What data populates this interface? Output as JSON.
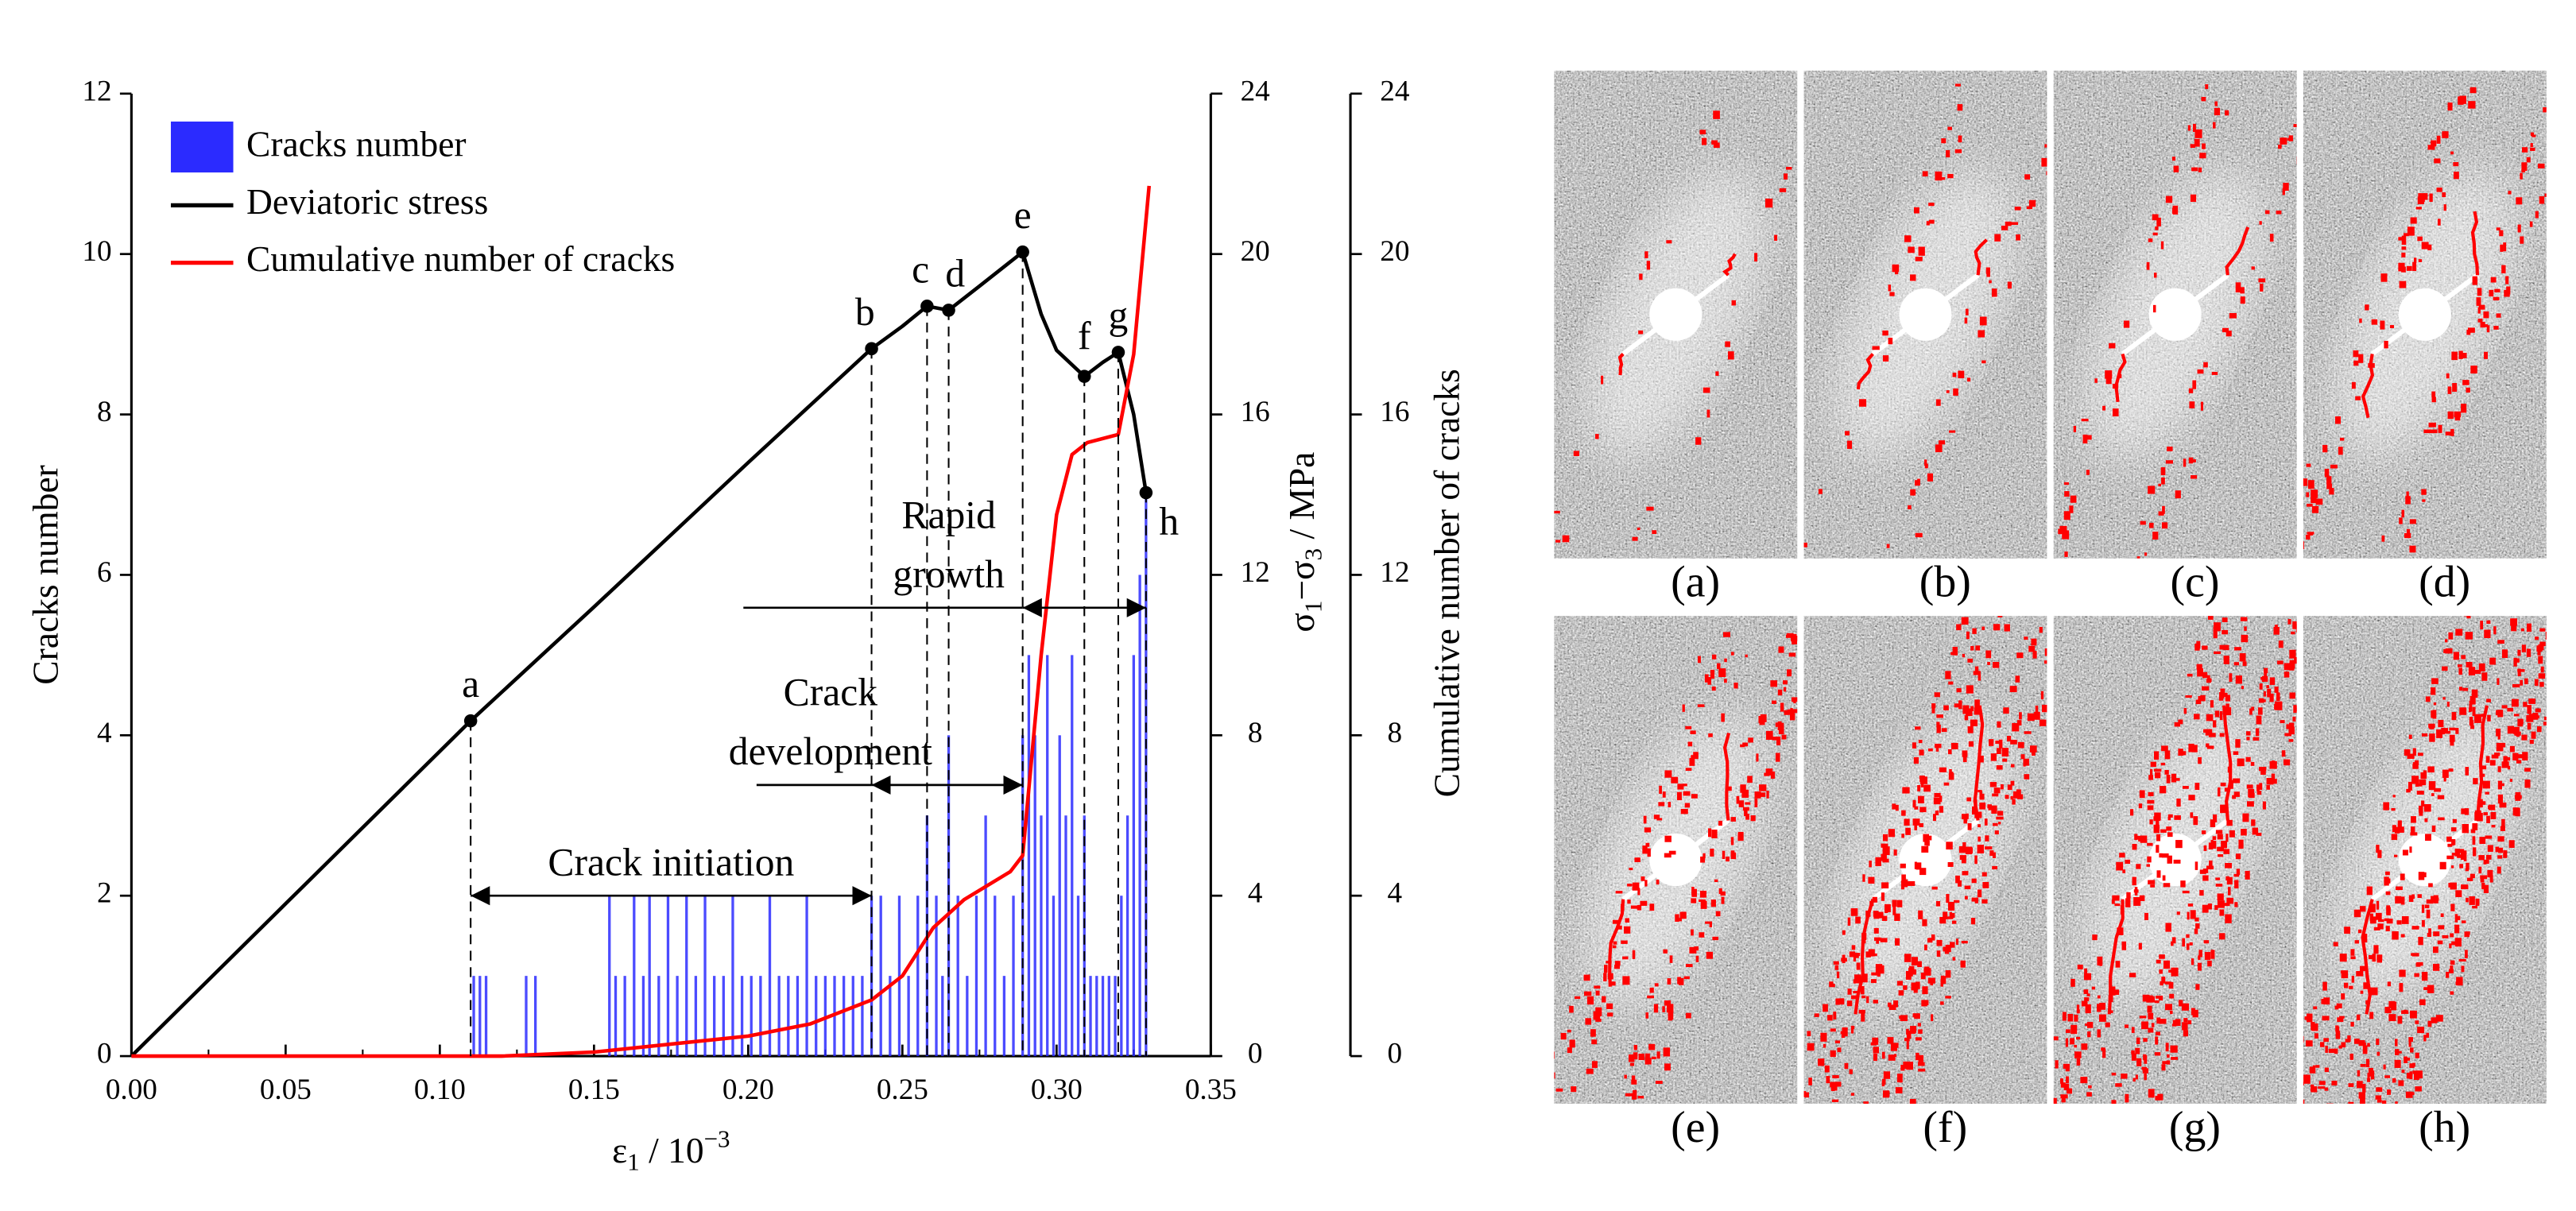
{
  "chart_data": {
    "type": "combo",
    "xlim": [
      0,
      0.35
    ],
    "xticks": [
      {
        "value": 0,
        "label": "0.00"
      },
      0.05,
      {
        "value": 0.1,
        "label": "0.10"
      },
      0.15,
      {
        "value": 0.2,
        "label": "0.20"
      },
      0.25,
      {
        "value": 0.3,
        "label": "0.30"
      },
      0.35
    ],
    "x_label": [
      "ε",
      "1",
      " / 10",
      "−3"
    ],
    "ylim": [
      0,
      12
    ],
    "yticks": [
      0,
      2,
      4,
      6,
      8,
      10,
      12
    ],
    "y_label": "Cracks number",
    "y2lim": [
      0,
      24
    ],
    "y2ticks": [
      0,
      4,
      8,
      12,
      16,
      20,
      24
    ],
    "y2_label": [
      "σ",
      "1",
      "−σ",
      "3",
      " / MPa"
    ],
    "y3lim": [
      0,
      24
    ],
    "y3ticks": [
      0,
      4,
      8,
      12,
      16,
      20,
      24
    ],
    "y3_label": "Cumulative number of cracks",
    "legend": "upper left",
    "series": [
      {
        "name": "Cracks number",
        "type": "bar",
        "color": "#2b2bff",
        "axis": "y",
        "x": [
          0.111,
          0.113,
          0.115,
          0.128,
          0.131,
          0.155,
          0.157,
          0.16,
          0.163,
          0.166,
          0.168,
          0.171,
          0.174,
          0.177,
          0.18,
          0.183,
          0.186,
          0.189,
          0.192,
          0.195,
          0.198,
          0.201,
          0.204,
          0.207,
          0.21,
          0.213,
          0.216,
          0.219,
          0.222,
          0.225,
          0.228,
          0.231,
          0.234,
          0.237,
          0.24,
          0.243,
          0.246,
          0.249,
          0.252,
          0.255,
          0.258,
          0.261,
          0.263,
          0.265,
          0.268,
          0.271,
          0.274,
          0.277,
          0.28,
          0.283,
          0.286,
          0.289,
          0.291,
          0.293,
          0.295,
          0.297,
          0.299,
          0.301,
          0.303,
          0.305,
          0.307,
          0.309,
          0.311,
          0.313,
          0.315,
          0.317,
          0.319,
          0.321,
          0.323,
          0.325,
          0.327,
          0.329
        ],
        "values": [
          1,
          1,
          1,
          1,
          1,
          2,
          1,
          1,
          2,
          1,
          2,
          1,
          2,
          1,
          2,
          1,
          2,
          1,
          1,
          2,
          1,
          1,
          1,
          2,
          1,
          1,
          1,
          2,
          1,
          1,
          1,
          1,
          1,
          1,
          2,
          2,
          1,
          2,
          1,
          2,
          3,
          2,
          1,
          4,
          2,
          1,
          2,
          3,
          2,
          1,
          2,
          4,
          5,
          4,
          3,
          5,
          2,
          4,
          3,
          5,
          2,
          3,
          1,
          1,
          1,
          1,
          1,
          2,
          3,
          5,
          6,
          7
        ]
      },
      {
        "name": "Deviatoric stress",
        "type": "line",
        "color": "#000000",
        "axis": "y2",
        "x": [
          0,
          0.05,
          0.11,
          0.15,
          0.2,
          0.24,
          0.25,
          0.258,
          0.265,
          0.275,
          0.289,
          0.295,
          0.3,
          0.309,
          0.315,
          0.32,
          0.325,
          0.329
        ],
        "values": [
          0,
          3.8,
          8.36,
          11.2,
          14.8,
          17.64,
          18.2,
          18.7,
          18.6,
          19.2,
          20.05,
          18.5,
          17.6,
          16.95,
          17.3,
          17.55,
          16.0,
          14.05
        ]
      },
      {
        "name": "Cumulative number of cracks",
        "type": "line",
        "color": "#ff0000",
        "axis": "y3",
        "x": [
          0,
          0.12,
          0.15,
          0.2,
          0.22,
          0.24,
          0.25,
          0.26,
          0.27,
          0.285,
          0.289,
          0.295,
          0.3,
          0.305,
          0.31,
          0.32,
          0.325,
          0.33
        ],
        "values": [
          0,
          0,
          0.1,
          0.5,
          0.8,
          1.4,
          2.0,
          3.2,
          3.9,
          4.6,
          5.0,
          10.0,
          13.5,
          15.0,
          15.3,
          15.5,
          17.5,
          21.7
        ]
      }
    ],
    "points": [
      {
        "label": "a",
        "x": 0.11,
        "y": 8.36
      },
      {
        "label": "b",
        "x": 0.24,
        "y": 17.64
      },
      {
        "label": "c",
        "x": 0.258,
        "y": 18.7
      },
      {
        "label": "d",
        "x": 0.265,
        "y": 18.6
      },
      {
        "label": "e",
        "x": 0.289,
        "y": 20.05
      },
      {
        "label": "f",
        "x": 0.309,
        "y": 16.95
      },
      {
        "label": "g",
        "x": 0.32,
        "y": 17.55
      },
      {
        "label": "h",
        "x": 0.329,
        "y": 14.05
      }
    ],
    "annotations": [
      {
        "text_lines": [
          "Crack initiation"
        ],
        "x_range": [
          0.11,
          0.24
        ],
        "y": 2.0
      },
      {
        "text_lines": [
          "Crack",
          "development"
        ],
        "x_range": [
          0.24,
          0.289
        ],
        "y": 3.38
      },
      {
        "text_lines": [
          "Rapid",
          "growth"
        ],
        "x_range": [
          0.289,
          0.329
        ],
        "y": 5.59
      }
    ]
  },
  "panels": [
    {
      "label": "(a)"
    },
    {
      "label": "(b)"
    },
    {
      "label": "(c)"
    },
    {
      "label": "(d)"
    },
    {
      "label": "(e)"
    },
    {
      "label": "(f)"
    },
    {
      "label": "(g)"
    },
    {
      "label": "(h)"
    }
  ]
}
